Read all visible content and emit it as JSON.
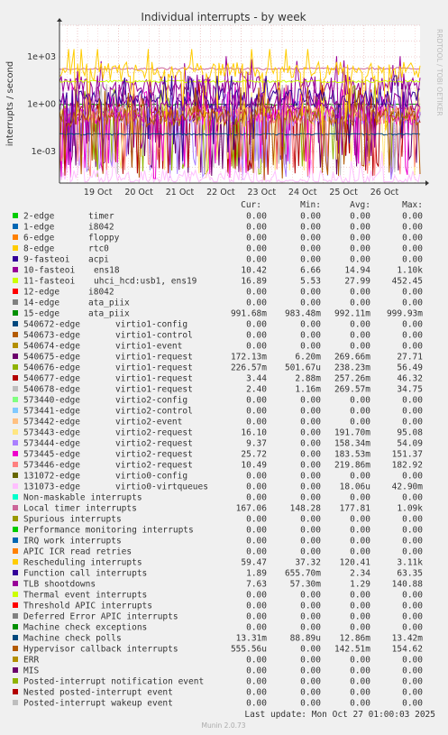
{
  "chart_data": {
    "type": "line",
    "title": "Individual interrupts - by week",
    "ylabel": "interrupts / second",
    "yscale": "log",
    "ylim": [
      1e-05,
      100000
    ],
    "ytick_labels": [
      "1e+03",
      "1e+00",
      "1e-03"
    ],
    "ytick_values": [
      1000,
      1,
      0.001
    ],
    "xtick_labels": [
      "19 Oct",
      "20 Oct",
      "21 Oct",
      "22 Oct",
      "23 Oct",
      "24 Oct",
      "25 Oct",
      "26 Oct"
    ],
    "side_label": "RRDTOOL / TOBI OETIKER",
    "grid": true,
    "legend_headers": [
      "Cur:",
      "Min:",
      "Avg:",
      "Max:"
    ],
    "series": [
      {
        "name": "2-edge",
        "desc": "timer",
        "color": "#00cc00",
        "cur": "0.00",
        "min": "0.00",
        "avg": "0.00",
        "max": "0.00"
      },
      {
        "name": "1-edge",
        "desc": "i8042",
        "color": "#0066b3",
        "cur": "0.00",
        "min": "0.00",
        "avg": "0.00",
        "max": "0.00"
      },
      {
        "name": "6-edge",
        "desc": "floppy",
        "color": "#ff8000",
        "cur": "0.00",
        "min": "0.00",
        "avg": "0.00",
        "max": "0.00"
      },
      {
        "name": "8-edge",
        "desc": "rtc0",
        "color": "#ffcc00",
        "cur": "0.00",
        "min": "0.00",
        "avg": "0.00",
        "max": "0.00"
      },
      {
        "name": "9-fasteoi",
        "desc": "acpi",
        "color": "#330099",
        "cur": "0.00",
        "min": "0.00",
        "avg": "0.00",
        "max": "0.00"
      },
      {
        "name": "10-fasteoi",
        "desc": "ens18",
        "color": "#990099",
        "cur": "10.42",
        "min": "6.66",
        "avg": "14.94",
        "max": "1.10k"
      },
      {
        "name": "11-fasteoi",
        "desc": "uhci_hcd:usb1, ens19",
        "color": "#ccff00",
        "cur": "16.89",
        "min": "5.53",
        "avg": "27.99",
        "max": "452.45"
      },
      {
        "name": "12-edge",
        "desc": "i8042",
        "color": "#ff0000",
        "cur": "0.00",
        "min": "0.00",
        "avg": "0.00",
        "max": "0.00"
      },
      {
        "name": "14-edge",
        "desc": "ata_piix",
        "color": "#808080",
        "cur": "0.00",
        "min": "0.00",
        "avg": "0.00",
        "max": "0.00"
      },
      {
        "name": "15-edge",
        "desc": "ata_piix",
        "color": "#008f00",
        "cur": "991.68m",
        "min": "983.48m",
        "avg": "992.11m",
        "max": "999.93m"
      },
      {
        "name": "540672-edge",
        "desc": "virtio1-config",
        "color": "#00487d",
        "cur": "0.00",
        "min": "0.00",
        "avg": "0.00",
        "max": "0.00"
      },
      {
        "name": "540673-edge",
        "desc": "virtio1-control",
        "color": "#b35a00",
        "cur": "0.00",
        "min": "0.00",
        "avg": "0.00",
        "max": "0.00"
      },
      {
        "name": "540674-edge",
        "desc": "virtio1-event",
        "color": "#b38f00",
        "cur": "0.00",
        "min": "0.00",
        "avg": "0.00",
        "max": "0.00"
      },
      {
        "name": "540675-edge",
        "desc": "virtio1-request",
        "color": "#6b006b",
        "cur": "172.13m",
        "min": "6.20m",
        "avg": "269.66m",
        "max": "27.71"
      },
      {
        "name": "540676-edge",
        "desc": "virtio1-request",
        "color": "#8fb300",
        "cur": "226.57m",
        "min": "501.67u",
        "avg": "238.23m",
        "max": "56.49"
      },
      {
        "name": "540677-edge",
        "desc": "virtio1-request",
        "color": "#b30000",
        "cur": "3.44",
        "min": "2.88m",
        "avg": "257.26m",
        "max": "46.32"
      },
      {
        "name": "540678-edge",
        "desc": "virtio1-request",
        "color": "#bebebe",
        "cur": "2.40",
        "min": "1.16m",
        "avg": "269.57m",
        "max": "34.75"
      },
      {
        "name": "573440-edge",
        "desc": "virtio2-config",
        "color": "#80ff80",
        "cur": "0.00",
        "min": "0.00",
        "avg": "0.00",
        "max": "0.00"
      },
      {
        "name": "573441-edge",
        "desc": "virtio2-control",
        "color": "#80c9ff",
        "cur": "0.00",
        "min": "0.00",
        "avg": "0.00",
        "max": "0.00"
      },
      {
        "name": "573442-edge",
        "desc": "virtio2-event",
        "color": "#ffc080",
        "cur": "0.00",
        "min": "0.00",
        "avg": "0.00",
        "max": "0.00"
      },
      {
        "name": "573443-edge",
        "desc": "virtio2-request",
        "color": "#ffe680",
        "cur": "16.10",
        "min": "0.00",
        "avg": "191.70m",
        "max": "95.08"
      },
      {
        "name": "573444-edge",
        "desc": "virtio2-request",
        "color": "#aa80ff",
        "cur": "9.37",
        "min": "0.00",
        "avg": "158.34m",
        "max": "54.09"
      },
      {
        "name": "573445-edge",
        "desc": "virtio2-request",
        "color": "#ee00cc",
        "cur": "25.72",
        "min": "0.00",
        "avg": "183.53m",
        "max": "151.37"
      },
      {
        "name": "573446-edge",
        "desc": "virtio2-request",
        "color": "#ff8080",
        "cur": "10.49",
        "min": "0.00",
        "avg": "219.86m",
        "max": "182.92"
      },
      {
        "name": "131072-edge",
        "desc": "virtio0-config",
        "color": "#666600",
        "cur": "0.00",
        "min": "0.00",
        "avg": "0.00",
        "max": "0.00"
      },
      {
        "name": "131073-edge",
        "desc": "virtio0-virtqueues",
        "color": "#ffbfff",
        "cur": "0.00",
        "min": "0.00",
        "avg": "18.06u",
        "max": "42.90m"
      },
      {
        "name": "Non-maskable interrupts",
        "desc": "",
        "color": "#00ffcc",
        "cur": "0.00",
        "min": "0.00",
        "avg": "0.00",
        "max": "0.00"
      },
      {
        "name": "Local timer interrupts",
        "desc": "",
        "color": "#cc6699",
        "cur": "167.06",
        "min": "148.28",
        "avg": "177.81",
        "max": "1.09k"
      },
      {
        "name": "Spurious interrupts",
        "desc": "",
        "color": "#999900",
        "cur": "0.00",
        "min": "0.00",
        "avg": "0.00",
        "max": "0.00"
      },
      {
        "name": "Performance monitoring interrupts",
        "desc": "",
        "color": "#00cc00",
        "cur": "0.00",
        "min": "0.00",
        "avg": "0.00",
        "max": "0.00"
      },
      {
        "name": "IRQ work interrupts",
        "desc": "",
        "color": "#0066b3",
        "cur": "0.00",
        "min": "0.00",
        "avg": "0.00",
        "max": "0.00"
      },
      {
        "name": "APIC ICR read retries",
        "desc": "",
        "color": "#ff8000",
        "cur": "0.00",
        "min": "0.00",
        "avg": "0.00",
        "max": "0.00"
      },
      {
        "name": "Rescheduling interrupts",
        "desc": "",
        "color": "#ffcc00",
        "cur": "59.47",
        "min": "37.32",
        "avg": "120.41",
        "max": "3.11k"
      },
      {
        "name": "Function call interrupts",
        "desc": "",
        "color": "#330099",
        "cur": "1.89",
        "min": "655.70m",
        "avg": "2.34",
        "max": "63.35"
      },
      {
        "name": "TLB shootdowns",
        "desc": "",
        "color": "#990099",
        "cur": "7.63",
        "min": "57.30m",
        "avg": "1.29",
        "max": "140.88"
      },
      {
        "name": "Thermal event interrupts",
        "desc": "",
        "color": "#ccff00",
        "cur": "0.00",
        "min": "0.00",
        "avg": "0.00",
        "max": "0.00"
      },
      {
        "name": "Threshold APIC interrupts",
        "desc": "",
        "color": "#ff0000",
        "cur": "0.00",
        "min": "0.00",
        "avg": "0.00",
        "max": "0.00"
      },
      {
        "name": "Deferred Error APIC interrupts",
        "desc": "",
        "color": "#808080",
        "cur": "0.00",
        "min": "0.00",
        "avg": "0.00",
        "max": "0.00"
      },
      {
        "name": "Machine check exceptions",
        "desc": "",
        "color": "#008f00",
        "cur": "0.00",
        "min": "0.00",
        "avg": "0.00",
        "max": "0.00"
      },
      {
        "name": "Machine check polls",
        "desc": "",
        "color": "#00487d",
        "cur": "13.31m",
        "min": "88.89u",
        "avg": "12.86m",
        "max": "13.42m"
      },
      {
        "name": "Hypervisor callback interrupts",
        "desc": "",
        "color": "#b35a00",
        "cur": "555.56u",
        "min": "0.00",
        "avg": "142.51m",
        "max": "154.62"
      },
      {
        "name": "ERR",
        "desc": "",
        "color": "#b38f00",
        "cur": "0.00",
        "min": "0.00",
        "avg": "0.00",
        "max": "0.00"
      },
      {
        "name": "MIS",
        "desc": "",
        "color": "#6b006b",
        "cur": "0.00",
        "min": "0.00",
        "avg": "0.00",
        "max": "0.00"
      },
      {
        "name": "Posted-interrupt notification event",
        "desc": "",
        "color": "#8fb300",
        "cur": "0.00",
        "min": "0.00",
        "avg": "0.00",
        "max": "0.00"
      },
      {
        "name": "Nested posted-interrupt event",
        "desc": "",
        "color": "#b30000",
        "cur": "0.00",
        "min": "0.00",
        "avg": "0.00",
        "max": "0.00"
      },
      {
        "name": "Posted-interrupt wakeup event",
        "desc": "",
        "color": "#bebebe",
        "cur": "0.00",
        "min": "0.00",
        "avg": "0.00",
        "max": "0.00"
      }
    ],
    "last_update": "Last update: Mon Oct 27 01:00:03 2025",
    "footer": "Munin 2.0.73"
  }
}
